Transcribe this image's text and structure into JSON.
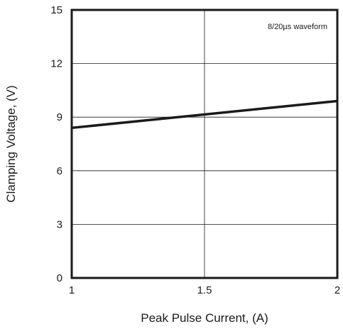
{
  "chart_data": {
    "type": "line",
    "title": "",
    "xlabel": "Peak Pulse Current, (A)",
    "ylabel": "Clamping Voltage, (V)",
    "annotation": "8/20µs waveform",
    "xlim": [
      1,
      2
    ],
    "ylim": [
      0,
      15
    ],
    "x_ticks": [
      "1",
      "1.5",
      "2"
    ],
    "y_ticks": [
      "0",
      "3",
      "6",
      "9",
      "12",
      "15"
    ],
    "x_tick_values": [
      1,
      1.5,
      2
    ],
    "y_tick_values": [
      0,
      3,
      6,
      9,
      12,
      15
    ],
    "grid": true,
    "series": [
      {
        "x": [
          1,
          2
        ],
        "y": [
          8.4,
          9.9
        ]
      }
    ]
  }
}
